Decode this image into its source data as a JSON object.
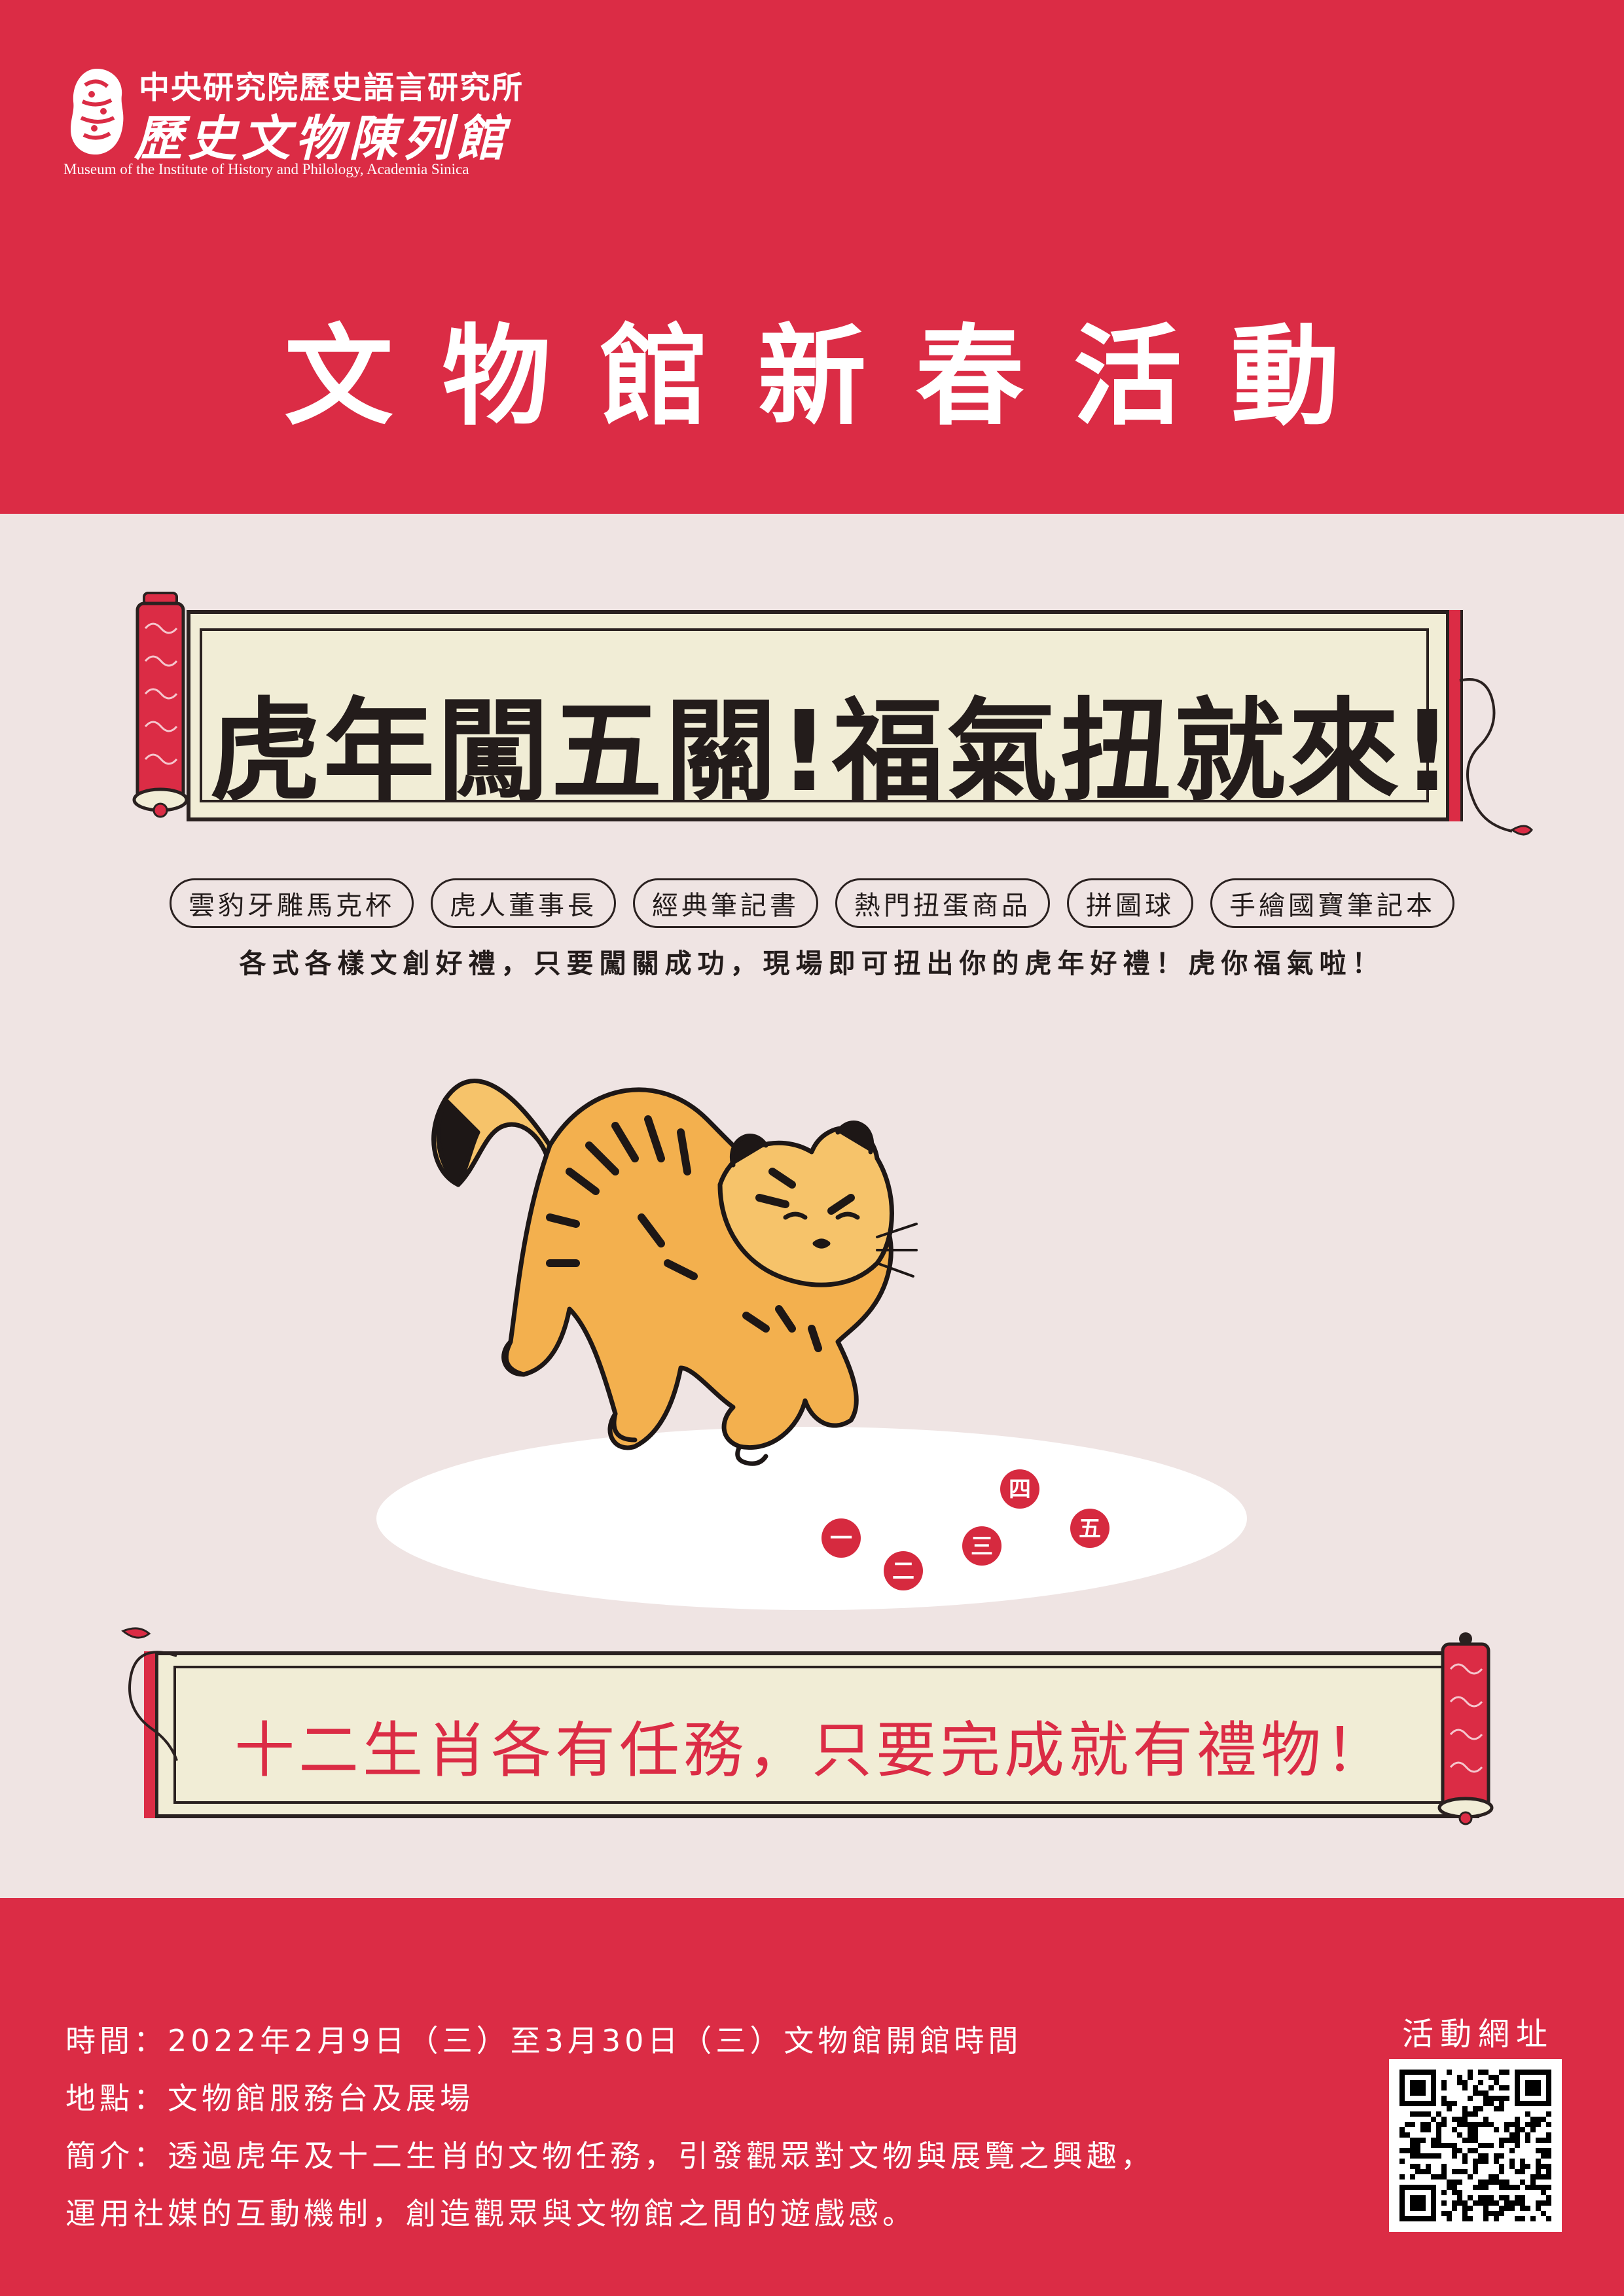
{
  "header": {
    "institute_name": "中央研究院歷史語言研究所",
    "museum_name": "歷史文物陳列館",
    "museum_name_en": "Museum of the Institute of History and Philology, Academia Sinica",
    "title": "文物館新春活動"
  },
  "banner_top": {
    "text": "虎年闖五關!福氣扭就來!"
  },
  "prizes": [
    {
      "label": "雲豹牙雕馬克杯"
    },
    {
      "label": "虎人董事長"
    },
    {
      "label": "經典筆記書"
    },
    {
      "label": "熱門扭蛋商品"
    },
    {
      "label": "拼圖球"
    },
    {
      "label": "手繪國寶筆記本"
    }
  ],
  "tagline": "各式各樣文創好禮，只要闖關成功，現場即可扭出你的虎年好禮！虎你福氣啦！",
  "balls": [
    "一",
    "二",
    "三",
    "四",
    "五"
  ],
  "banner_bottom": {
    "text": "十二生肖各有任務，只要完成就有禮物！"
  },
  "info": {
    "time": "時間：2022年2月9日（三）至3月30日（三）文物館開館時間",
    "place": "地點：文物館服務台及展場",
    "intro_line1": "簡介：透過虎年及十二生肖的文物任務，引發觀眾對文物與展覽之興趣，",
    "intro_line2": "運用社媒的互動機制，創造觀眾與文物館之間的遊戲感。"
  },
  "qr": {
    "label": "活動網址"
  },
  "colors": {
    "brand_red": "#db2c45",
    "paper": "#f1edd6",
    "background": "#efe4e3",
    "ink": "#231c1b",
    "tiger_orange": "#f0a83a"
  },
  "icons": {
    "logo": "museum-seal-icon",
    "qr": "qr-code-icon"
  }
}
